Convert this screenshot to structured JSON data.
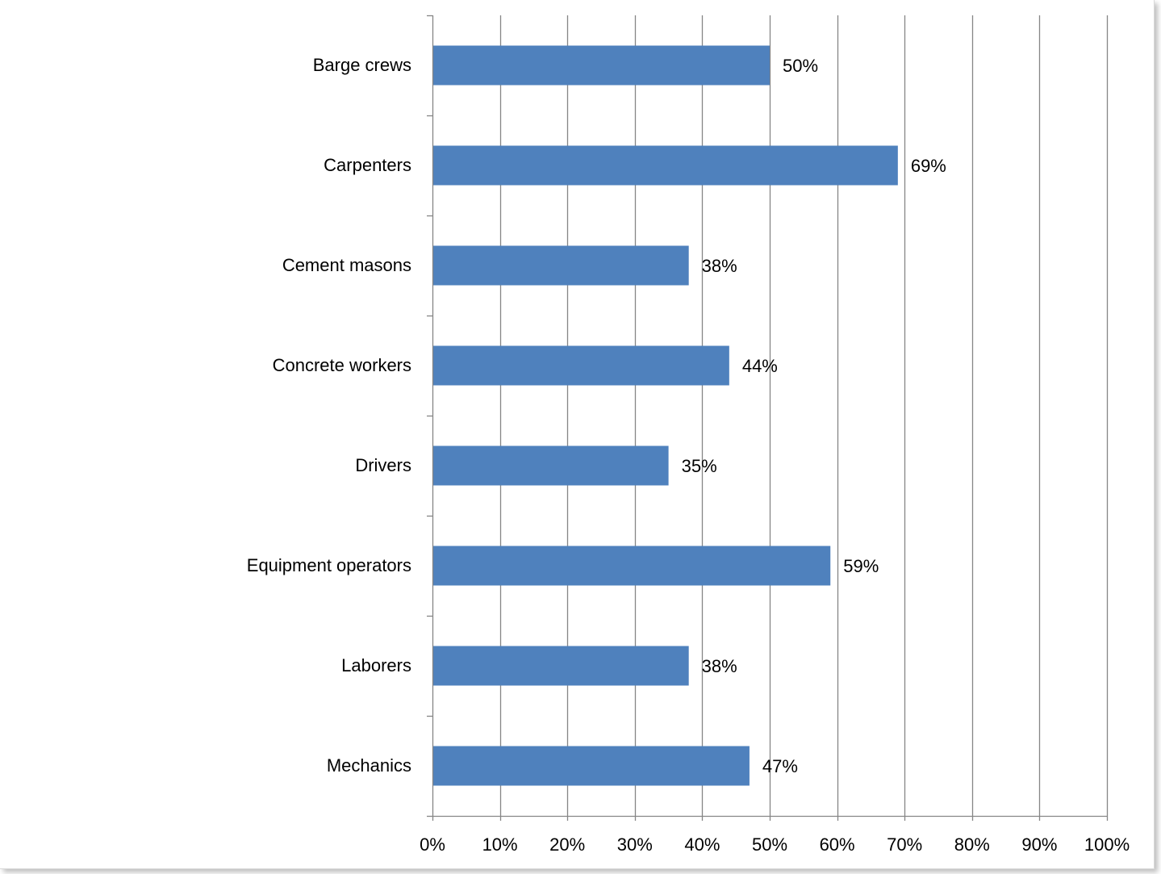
{
  "chart_data": {
    "type": "bar",
    "orientation": "horizontal",
    "title": "",
    "xlabel": "",
    "ylabel": "",
    "categories": [
      "Barge crews",
      "Carpenters",
      "Cement masons",
      "Concrete workers",
      "Drivers",
      "Equipment operators",
      "Laborers",
      "Mechanics"
    ],
    "values": [
      50,
      69,
      38,
      44,
      35,
      59,
      38,
      47
    ],
    "data_labels": [
      "50%",
      "69%",
      "38%",
      "44%",
      "35%",
      "59%",
      "38%",
      "47%"
    ],
    "xlim": [
      0,
      100
    ],
    "x_ticks": [
      0,
      10,
      20,
      30,
      40,
      50,
      60,
      70,
      80,
      90,
      100
    ],
    "x_tick_labels": [
      "0%",
      "10%",
      "20%",
      "30%",
      "40%",
      "50%",
      "60%",
      "70%",
      "80%",
      "90%",
      "100%"
    ],
    "grid": "vertical major gridlines",
    "legend": "none",
    "bar_color": "#4f81bd",
    "grid_color": "#868686"
  }
}
